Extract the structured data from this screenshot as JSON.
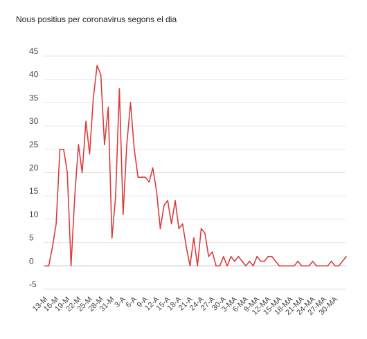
{
  "chart_data": {
    "type": "line",
    "title": "Nous positius per coronavirus segons el dia",
    "xlabel": "",
    "ylabel": "",
    "ylim": [
      -5,
      45
    ],
    "yticks": [
      45,
      40,
      35,
      30,
      25,
      20,
      15,
      10,
      5,
      0,
      -5
    ],
    "xtick_labels": [
      "13-M",
      "16-M",
      "19-M",
      "22-M",
      "25-M",
      "28-M",
      "31-M",
      "3-A",
      "6-A",
      "9-A",
      "12-A",
      "15-A",
      "18-A",
      "21-A",
      "24-A",
      "27-A",
      "30-A",
      "3-MA",
      "6-MA",
      "9-MA",
      "12-MA",
      "15-MA",
      "18-MA",
      "21-MA",
      "24-MA",
      "27-MA",
      "30-MA"
    ],
    "grid": true,
    "legend": "none",
    "line_color": "#db3c3c",
    "series": [
      {
        "values": [
          0,
          0,
          4,
          9,
          25,
          25,
          20,
          0,
          15,
          26,
          20,
          31,
          24,
          36,
          43,
          41,
          26,
          34,
          6,
          15,
          38,
          11,
          26,
          35,
          25,
          19,
          19,
          19,
          18,
          21,
          16,
          8,
          13,
          14,
          9,
          14,
          8,
          9,
          4,
          0,
          6,
          0,
          8,
          7,
          2,
          3,
          0,
          0,
          2,
          0,
          2,
          1,
          2,
          1,
          0,
          1,
          0,
          2,
          1,
          1,
          2,
          2,
          1,
          0,
          0,
          0,
          0,
          0,
          1,
          0,
          0,
          0,
          1,
          0,
          0,
          0,
          0,
          1,
          0,
          0,
          1,
          2
        ]
      }
    ]
  }
}
